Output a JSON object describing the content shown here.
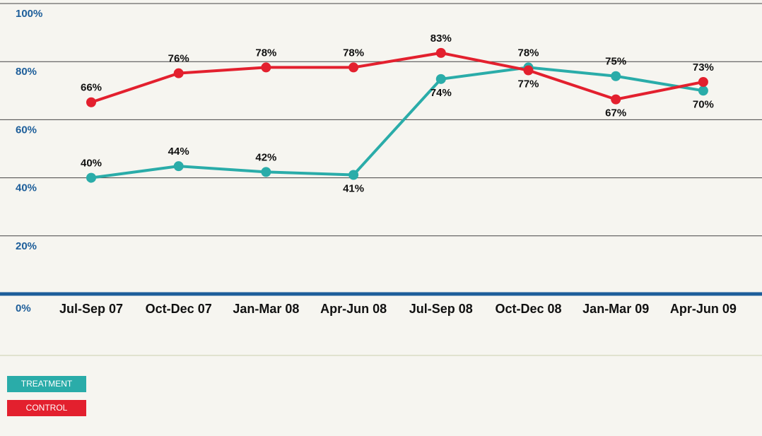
{
  "chart_data": {
    "type": "line",
    "categories": [
      "Jul-Sep 07",
      "Oct-Dec 07",
      "Jan-Mar 08",
      "Apr-Jun 08",
      "Jul-Sep 08",
      "Oct-Dec 08",
      "Jan-Mar 09",
      "Apr-Jun 09"
    ],
    "series": [
      {
        "name": "TREATMENT",
        "color": "#2aaca9",
        "values": [
          40,
          44,
          42,
          41,
          74,
          78,
          75,
          70
        ],
        "value_labels": [
          "40%",
          "44%",
          "42%",
          "41%",
          "74%",
          "78%",
          "75%",
          "70%"
        ]
      },
      {
        "name": "CONTROL",
        "color": "#e3202e",
        "values": [
          66,
          76,
          78,
          78,
          83,
          77,
          67,
          73
        ],
        "value_labels": [
          "66%",
          "76%",
          "78%",
          "78%",
          "83%",
          "77%",
          "67%",
          "73%"
        ]
      }
    ],
    "ylim": [
      0,
      100
    ],
    "yticks": [
      {
        "value": 0,
        "label": "0%"
      },
      {
        "value": 20,
        "label": "20%"
      },
      {
        "value": 40,
        "label": "40%"
      },
      {
        "value": 60,
        "label": "60%"
      },
      {
        "value": 80,
        "label": "80%"
      },
      {
        "value": 100,
        "label": "100%"
      }
    ],
    "grid": true
  }
}
